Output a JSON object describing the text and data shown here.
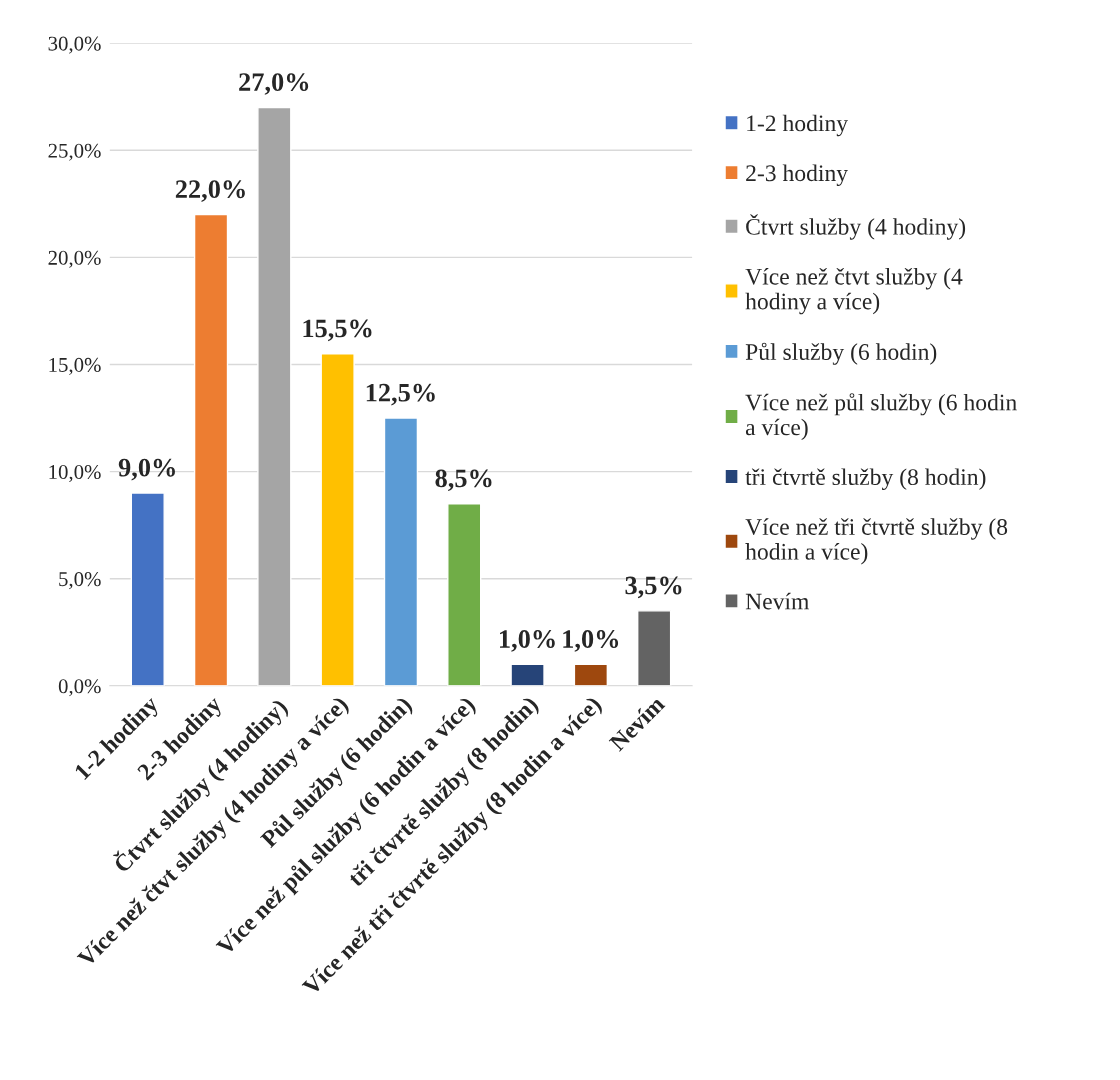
{
  "chart_data": {
    "type": "bar",
    "categories": [
      "1-2 hodiny",
      "2-3 hodiny",
      "Čtvrt služby (4 hodiny)",
      "Více než čtvt služby (4 hodiny a více)",
      "Půl služby (6 hodin)",
      "Více než půl služby (6 hodin a více)",
      "tři čtvrtě služby (8 hodin)",
      "Více než tři čtvrtě služby (8 hodin a více)",
      "Nevím"
    ],
    "series": [
      {
        "name": "1-2 hodiny",
        "color": "#4472c4",
        "values": [
          9.0,
          null,
          null,
          null,
          null,
          null,
          null,
          null,
          null
        ],
        "value_labels": [
          "9,0%",
          null,
          null,
          null,
          null,
          null,
          null,
          null,
          null
        ]
      },
      {
        "name": "2-3 hodiny",
        "color": "#ed7d31",
        "values": [
          null,
          22.0,
          null,
          null,
          null,
          null,
          null,
          null,
          null
        ],
        "value_labels": [
          null,
          "22,0%",
          null,
          null,
          null,
          null,
          null,
          null,
          null
        ]
      },
      {
        "name": "Čtvrt služby (4 hodiny)",
        "color": "#a5a5a5",
        "values": [
          null,
          null,
          27.0,
          null,
          null,
          null,
          null,
          null,
          null
        ],
        "value_labels": [
          null,
          null,
          "27,0%",
          null,
          null,
          null,
          null,
          null,
          null
        ]
      },
      {
        "name": "Více než čtvt služby (4 hodiny a více)",
        "color": "#ffc000",
        "values": [
          null,
          null,
          null,
          15.5,
          null,
          null,
          null,
          null,
          null
        ],
        "value_labels": [
          null,
          null,
          null,
          "15,5%",
          null,
          null,
          null,
          null,
          null
        ]
      },
      {
        "name": "Půl služby (6 hodin)",
        "color": "#5b9bd5",
        "values": [
          null,
          null,
          null,
          null,
          12.5,
          null,
          null,
          null,
          null
        ],
        "value_labels": [
          null,
          null,
          null,
          null,
          "12,5%",
          null,
          null,
          null,
          null
        ]
      },
      {
        "name": "Více než půl služby (6 hodin a více)",
        "color": "#70ad47",
        "values": [
          null,
          null,
          null,
          null,
          null,
          8.5,
          null,
          null,
          null
        ],
        "value_labels": [
          null,
          null,
          null,
          null,
          null,
          "8,5%",
          null,
          null,
          null
        ]
      },
      {
        "name": "tři čtvrtě služby (8 hodin)",
        "color": "#264478",
        "values": [
          null,
          null,
          null,
          null,
          null,
          null,
          1.0,
          null,
          null
        ],
        "value_labels": [
          null,
          null,
          null,
          null,
          null,
          null,
          "1,0%",
          null,
          null
        ]
      },
      {
        "name": "Více než tři čtvrtě služby (8 hodin a více)",
        "color": "#9e480e",
        "values": [
          null,
          null,
          null,
          null,
          null,
          null,
          null,
          1.0,
          null
        ],
        "value_labels": [
          null,
          null,
          null,
          null,
          null,
          null,
          null,
          "1,0%",
          null
        ]
      },
      {
        "name": "Nevím",
        "color": "#636363",
        "values": [
          null,
          null,
          null,
          null,
          null,
          null,
          null,
          null,
          3.5
        ],
        "value_labels": [
          null,
          null,
          null,
          null,
          null,
          null,
          null,
          null,
          "3,5%"
        ]
      }
    ],
    "ylim": [
      0,
      30
    ],
    "yticks": [
      {
        "value": 0,
        "label": "0,0%"
      },
      {
        "value": 5,
        "label": "5,0%"
      },
      {
        "value": 10,
        "label": "10,0%"
      },
      {
        "value": 15,
        "label": "15,0%"
      },
      {
        "value": 20,
        "label": "20,0%"
      },
      {
        "value": 25,
        "label": "25,0%"
      },
      {
        "value": 30,
        "label": "30,0%"
      }
    ],
    "grid": "y",
    "legend": "right"
  }
}
